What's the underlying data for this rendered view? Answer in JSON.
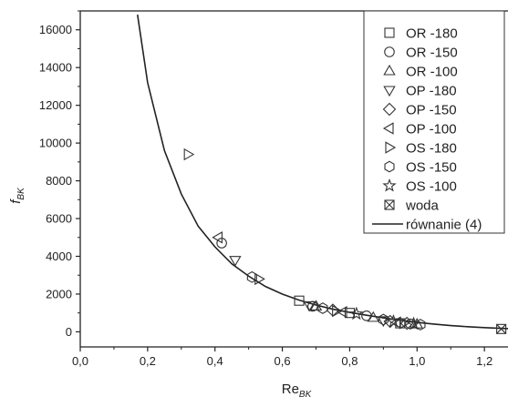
{
  "chart_data": {
    "type": "scatter",
    "ylabel": {
      "main": "f",
      "sub": "BK"
    },
    "xlabel": {
      "main": "Re",
      "sub": "BK"
    },
    "xlim": [
      0.0,
      1.27
    ],
    "ylim": [
      -800,
      17000
    ],
    "x_ticks": [
      "0,0",
      "0,2",
      "0,4",
      "0,6",
      "0,8",
      "1,0",
      "1,2"
    ],
    "x_tick_values": [
      0.0,
      0.2,
      0.4,
      0.6,
      0.8,
      1.0,
      1.2
    ],
    "y_ticks": [
      "0",
      "2000",
      "4000",
      "6000",
      "8000",
      "10000",
      "12000",
      "14000",
      "16000"
    ],
    "y_tick_values": [
      0,
      2000,
      4000,
      6000,
      8000,
      10000,
      12000,
      14000,
      16000
    ],
    "grid": false,
    "legend_position": "top-right",
    "series": [
      {
        "name": "OR -180",
        "marker": "square",
        "points": [
          [
            0.65,
            1650
          ],
          [
            0.8,
            1000
          ],
          [
            0.95,
            450
          ]
        ]
      },
      {
        "name": "OR -150",
        "marker": "circle",
        "points": [
          [
            0.42,
            4700
          ],
          [
            0.69,
            1350
          ],
          [
            0.85,
            850
          ],
          [
            0.98,
            420
          ]
        ]
      },
      {
        "name": "OR -100",
        "marker": "triangle-up",
        "points": [
          [
            0.7,
            1350
          ],
          [
            0.87,
            750
          ],
          [
            1.0,
            400
          ]
        ]
      },
      {
        "name": "OP -180",
        "marker": "triangle-down",
        "points": [
          [
            0.46,
            3800
          ],
          [
            0.68,
            1400
          ],
          [
            0.9,
            600
          ]
        ]
      },
      {
        "name": "OP -150",
        "marker": "diamond",
        "points": [
          [
            0.75,
            1150
          ],
          [
            0.92,
            550
          ],
          [
            0.97,
            450
          ]
        ]
      },
      {
        "name": "OP -100",
        "marker": "triangle-left",
        "points": [
          [
            0.41,
            5000
          ],
          [
            0.78,
            1050
          ],
          [
            0.94,
            500
          ]
        ]
      },
      {
        "name": "OS -180",
        "marker": "triangle-right",
        "points": [
          [
            0.32,
            9400
          ],
          [
            0.53,
            2800
          ],
          [
            0.76,
            1100
          ],
          [
            0.96,
            460
          ]
        ]
      },
      {
        "name": "OS -150",
        "marker": "hexagon",
        "points": [
          [
            0.51,
            2900
          ],
          [
            0.72,
            1250
          ],
          [
            0.9,
            650
          ],
          [
            1.01,
            380
          ]
        ]
      },
      {
        "name": "OS -100",
        "marker": "star",
        "points": [
          [
            0.82,
            950
          ],
          [
            0.93,
            550
          ],
          [
            0.99,
            420
          ]
        ]
      },
      {
        "name": "woda",
        "marker": "crossed-square",
        "points": [
          [
            1.25,
            150
          ]
        ]
      }
    ],
    "curve": {
      "name": "równanie (4)",
      "points": [
        [
          0.17,
          16800
        ],
        [
          0.2,
          13200
        ],
        [
          0.25,
          9600
        ],
        [
          0.3,
          7300
        ],
        [
          0.35,
          5600
        ],
        [
          0.4,
          4500
        ],
        [
          0.45,
          3600
        ],
        [
          0.5,
          2950
        ],
        [
          0.55,
          2400
        ],
        [
          0.6,
          2000
        ],
        [
          0.65,
          1680
        ],
        [
          0.7,
          1420
        ],
        [
          0.75,
          1200
        ],
        [
          0.8,
          1030
        ],
        [
          0.85,
          880
        ],
        [
          0.9,
          740
        ],
        [
          0.95,
          610
        ],
        [
          1.0,
          500
        ],
        [
          1.05,
          410
        ],
        [
          1.1,
          330
        ],
        [
          1.15,
          270
        ],
        [
          1.2,
          220
        ],
        [
          1.27,
          170
        ]
      ]
    }
  }
}
